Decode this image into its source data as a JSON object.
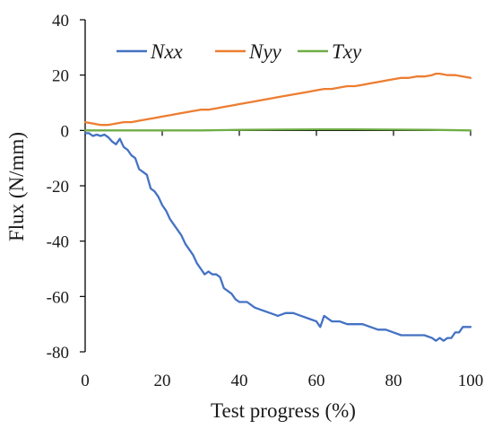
{
  "chart_data": {
    "type": "line",
    "title": "",
    "xlabel": "Test progress  (%)",
    "ylabel": "Flux (N/mm)",
    "xlim": [
      0,
      100
    ],
    "ylim": [
      -80,
      40
    ],
    "xticks": [
      0,
      20,
      40,
      60,
      80,
      100
    ],
    "yticks": [
      -80,
      -60,
      -40,
      -20,
      0,
      20,
      40
    ],
    "x_tick_labels": [
      "0",
      "20",
      "40",
      "60",
      "80",
      "100"
    ],
    "y_tick_labels": [
      "-80",
      "-60",
      "-40",
      "-20",
      "0",
      "20",
      "40"
    ],
    "grid": false,
    "legend_position": "top",
    "series": [
      {
        "name": "Nxx",
        "color": "#4472C4",
        "x": [
          0,
          1,
          2,
          3,
          4,
          5,
          6,
          7,
          8,
          9,
          10,
          11,
          12,
          13,
          14,
          15,
          16,
          17,
          18,
          19,
          20,
          21,
          22,
          23,
          24,
          25,
          26,
          27,
          28,
          29,
          30,
          31,
          32,
          33,
          34,
          35,
          36,
          37,
          38,
          39,
          40,
          42,
          44,
          46,
          48,
          50,
          52,
          54,
          56,
          58,
          60,
          61,
          62,
          64,
          66,
          68,
          70,
          72,
          74,
          76,
          78,
          80,
          82,
          84,
          86,
          88,
          90,
          91,
          92,
          93,
          94,
          95,
          96,
          97,
          98,
          99,
          100
        ],
        "values": [
          -1,
          -1,
          -2,
          -1.5,
          -2,
          -1.5,
          -2.5,
          -4,
          -5,
          -3,
          -6,
          -7,
          -9,
          -10,
          -14,
          -15,
          -16,
          -21,
          -22,
          -24,
          -27,
          -29,
          -32,
          -34,
          -36,
          -38,
          -41,
          -43,
          -45,
          -48,
          -50,
          -52,
          -51,
          -52,
          -52,
          -53,
          -57,
          -58,
          -59,
          -61,
          -62,
          -62,
          -64,
          -65,
          -66,
          -67,
          -66,
          -66,
          -67,
          -68,
          -69,
          -71,
          -67,
          -69,
          -69,
          -70,
          -70,
          -70,
          -71,
          -72,
          -72,
          -73,
          -74,
          -74,
          -74,
          -74,
          -75,
          -76,
          -75,
          -76,
          -75,
          -75,
          -73,
          -73,
          -71,
          -71,
          -71
        ]
      },
      {
        "name": "Nyy",
        "color": "#ED7D31",
        "x": [
          0,
          2,
          4,
          6,
          8,
          10,
          12,
          14,
          16,
          18,
          20,
          22,
          24,
          26,
          28,
          30,
          32,
          34,
          36,
          38,
          40,
          42,
          44,
          46,
          48,
          50,
          52,
          54,
          56,
          58,
          60,
          62,
          64,
          66,
          68,
          70,
          72,
          74,
          76,
          78,
          80,
          82,
          84,
          86,
          88,
          90,
          91,
          92,
          94,
          96,
          98,
          100
        ],
        "values": [
          3,
          2.5,
          2,
          2,
          2.5,
          3,
          3,
          3.5,
          4,
          4.5,
          5,
          5.5,
          6,
          6.5,
          7,
          7.5,
          7.5,
          8,
          8.5,
          9,
          9.5,
          10,
          10.5,
          11,
          11.5,
          12,
          12.5,
          13,
          13.5,
          14,
          14.5,
          15,
          15,
          15.5,
          16,
          16,
          16.5,
          17,
          17.5,
          18,
          18.5,
          19,
          19,
          19.5,
          19.5,
          20,
          20.5,
          20.5,
          20,
          20,
          19.5,
          19
        ]
      },
      {
        "name": "Txy",
        "color": "#70AD47",
        "x": [
          0,
          10,
          20,
          30,
          40,
          50,
          60,
          70,
          80,
          90,
          100
        ],
        "values": [
          0,
          0,
          0,
          0,
          0.2,
          0.3,
          0.4,
          0.4,
          0.3,
          0.2,
          0
        ]
      }
    ]
  }
}
